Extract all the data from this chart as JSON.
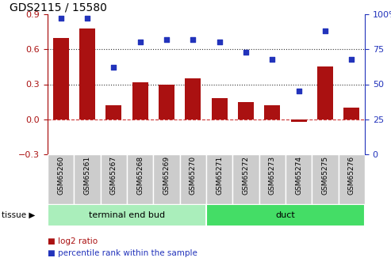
{
  "title": "GDS2115 / 15580",
  "samples": [
    "GSM65260",
    "GSM65261",
    "GSM65267",
    "GSM65268",
    "GSM65269",
    "GSM65270",
    "GSM65271",
    "GSM65272",
    "GSM65273",
    "GSM65274",
    "GSM65275",
    "GSM65276"
  ],
  "log2_ratio": [
    0.7,
    0.78,
    0.12,
    0.32,
    0.3,
    0.35,
    0.18,
    0.15,
    0.12,
    -0.02,
    0.45,
    0.1
  ],
  "percentile_rank": [
    97,
    97,
    62,
    80,
    82,
    82,
    80,
    73,
    68,
    45,
    88,
    68
  ],
  "bar_color": "#aa1111",
  "dot_color": "#2233bb",
  "left_yticks": [
    -0.3,
    0.0,
    0.3,
    0.6,
    0.9
  ],
  "right_yticks": [
    0,
    25,
    50,
    75,
    100
  ],
  "ylim_left": [
    -0.3,
    0.9
  ],
  "ylim_right": [
    0,
    100
  ],
  "tissue_groups": [
    {
      "label": "terminal end bud",
      "start": 0,
      "end": 6,
      "color": "#aaeebb"
    },
    {
      "label": "duct",
      "start": 6,
      "end": 12,
      "color": "#44dd66"
    }
  ],
  "tissue_label": "tissue",
  "legend1_label": "log2 ratio",
  "legend2_label": "percentile rank within the sample",
  "hline_color": "#cc3333",
  "hline_style": "--",
  "grid_color": "#333333",
  "grid_style": ":",
  "grid_ticks": [
    0.3,
    0.6
  ],
  "bg_color": "#ffffff",
  "label_area_color": "#cccccc"
}
